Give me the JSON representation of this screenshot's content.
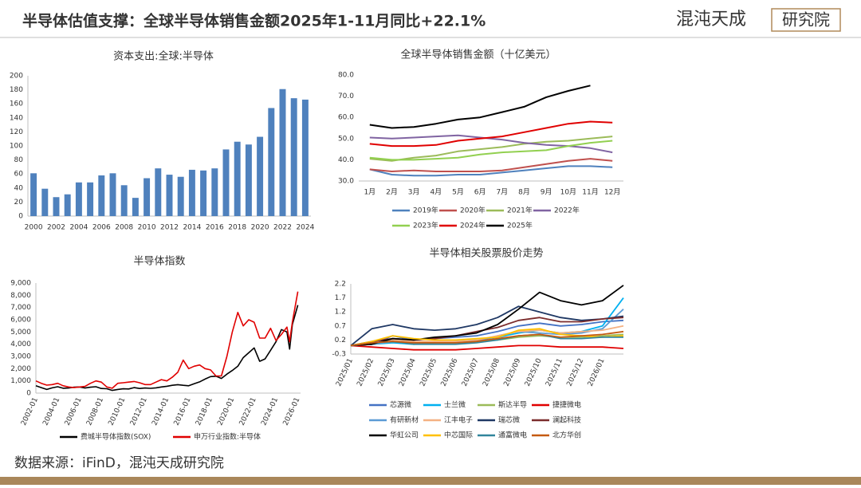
{
  "header": {
    "title": "半导体估值支撑：全球半导体销售金额2025年1-11月同比+22.1%",
    "logo_left": "混沌天成",
    "logo_right": "研究院"
  },
  "footer": {
    "source": "数据来源：iFinD，混沌天成研究院"
  },
  "chart_data": [
    {
      "type": "bar",
      "title": "资本支出:全球:半导体",
      "color": "#4f81bd",
      "categories": [
        "2000",
        null,
        "2002",
        null,
        "2004",
        null,
        "2006",
        null,
        "2008",
        null,
        "2010",
        null,
        "2012",
        null,
        "2014",
        null,
        "2016",
        null,
        "2018",
        null,
        "2020",
        null,
        "2022",
        null,
        "2024"
      ],
      "values": [
        61,
        39,
        27,
        31,
        48,
        48,
        58,
        61,
        44,
        26,
        54,
        68,
        59,
        56,
        66,
        65,
        68,
        95,
        106,
        102,
        113,
        154,
        181,
        168,
        166
      ],
      "ylim": [
        0,
        200
      ],
      "yticks": [
        0,
        20,
        40,
        60,
        80,
        100,
        120,
        140,
        160,
        180,
        200
      ]
    },
    {
      "type": "line",
      "title": "全球半导体销售金额（十亿美元）",
      "categories": [
        "1月",
        "2月",
        "3月",
        "4月",
        "5月",
        "6月",
        "7月",
        "8月",
        "9月",
        "10月",
        "11月",
        "12月"
      ],
      "ylim": [
        30,
        80
      ],
      "yticks": [
        {
          "value": 30,
          "label": "30.0"
        },
        {
          "value": 40,
          "label": "40.0"
        },
        {
          "value": 50,
          "label": "50.0"
        },
        {
          "value": 60,
          "label": "60.0"
        },
        {
          "value": 70,
          "label": "70.0"
        },
        {
          "value": 80,
          "label": "80.0"
        }
      ],
      "legend": "bottom",
      "series": [
        {
          "name": "2019年",
          "color": "#4f81bd",
          "values": [
            35.5,
            33.0,
            32.5,
            32.5,
            33.0,
            33.0,
            34.0,
            35.0,
            36.0,
            37.0,
            37.0,
            36.5
          ]
        },
        {
          "name": "2020年",
          "color": "#c0504d",
          "values": [
            35.5,
            34.5,
            35.0,
            34.5,
            34.5,
            34.5,
            35.0,
            36.5,
            38.0,
            39.5,
            40.5,
            39.5
          ]
        },
        {
          "name": "2021年",
          "color": "#9bbb59",
          "values": [
            40.5,
            39.5,
            41.0,
            42.0,
            44.0,
            45.0,
            46.0,
            47.5,
            48.5,
            49.0,
            50.0,
            51.0
          ]
        },
        {
          "name": "2022年",
          "color": "#8064a2",
          "values": [
            50.5,
            50.0,
            50.5,
            51.0,
            51.5,
            50.5,
            49.5,
            48.0,
            47.0,
            46.5,
            45.5,
            43.5
          ]
        },
        {
          "name": "2023年",
          "color": "#92d050",
          "values": [
            41.0,
            40.0,
            40.0,
            40.5,
            41.0,
            42.5,
            43.5,
            44.0,
            44.5,
            46.5,
            48.0,
            49.0
          ]
        },
        {
          "name": "2024年",
          "color": "#e00000",
          "values": [
            47.5,
            46.5,
            46.5,
            47.0,
            49.0,
            50.0,
            51.0,
            53.0,
            55.0,
            57.0,
            58.0,
            57.5
          ]
        },
        {
          "name": "2025年",
          "color": "#000000",
          "values": [
            56.5,
            55.0,
            55.5,
            57.0,
            59.0,
            60.0,
            62.5,
            65.0,
            69.5,
            72.5,
            75.0,
            null
          ]
        }
      ]
    },
    {
      "type": "line",
      "title": "半导体指数",
      "x": [
        "2002-01",
        "2002-07",
        "2003-01",
        "2003-07",
        "2004-01",
        "2004-07",
        "2005-01",
        "2005-07",
        "2006-01",
        "2006-07",
        "2007-01",
        "2007-07",
        "2008-01",
        "2008-07",
        "2009-01",
        "2009-07",
        "2010-01",
        "2010-07",
        "2011-01",
        "2011-07",
        "2012-01",
        "2012-07",
        "2013-01",
        "2013-07",
        "2014-01",
        "2014-07",
        "2015-01",
        "2015-07",
        "2016-01",
        "2016-07",
        "2017-01",
        "2017-07",
        "2018-01",
        "2018-07",
        "2019-01",
        "2019-07",
        "2020-01",
        "2020-07",
        "2021-01",
        "2021-07",
        "2022-01",
        "2022-07",
        "2023-01",
        "2023-07",
        "2024-01",
        "2024-07",
        "2025-01",
        "2025-04",
        "2025-07",
        "2026-01"
      ],
      "xlim": [
        "2002-01",
        "2026-04"
      ],
      "xticks": [
        "2002-01",
        "2004-01",
        "2006-01",
        "2008-01",
        "2010-01",
        "2012-01",
        "2014-01",
        "2016-01",
        "2018-01",
        "2020-01",
        "2022-01",
        "2024-01",
        "2026-01"
      ],
      "ylim": [
        0,
        9000
      ],
      "yticks": [
        0,
        {
          "value": 1000,
          "label": "1,000"
        },
        {
          "value": 2000,
          "label": "2,000"
        },
        {
          "value": 3000,
          "label": "3,000"
        },
        {
          "value": 4000,
          "label": "4,000"
        },
        {
          "value": 5000,
          "label": "5,000"
        },
        {
          "value": 6000,
          "label": "6,000"
        },
        {
          "value": 7000,
          "label": "7,000"
        },
        {
          "value": 8000,
          "label": "8,000"
        },
        {
          "value": 9000,
          "label": "9,000"
        }
      ],
      "legend": "bottom",
      "series": [
        {
          "name": "费城半导体指数(SOX)",
          "color": "#000000",
          "values": [
            600,
            450,
            300,
            430,
            520,
            400,
            420,
            480,
            500,
            420,
            480,
            520,
            380,
            360,
            220,
            300,
            350,
            340,
            450,
            380,
            420,
            390,
            430,
            500,
            560,
            640,
            690,
            640,
            600,
            760,
            920,
            1150,
            1350,
            1380,
            1200,
            1550,
            1850,
            2200,
            2900,
            3300,
            3700,
            2600,
            2800,
            3500,
            4200,
            5200,
            5000,
            3600,
            5600,
            7200
          ]
        },
        {
          "name": "申万行业指数:半导体",
          "color": "#e00000",
          "values": [
            1000,
            800,
            650,
            700,
            800,
            600,
            500,
            450,
            500,
            550,
            800,
            1000,
            900,
            500,
            400,
            800,
            850,
            900,
            950,
            850,
            700,
            700,
            900,
            1100,
            1000,
            1300,
            1700,
            2700,
            2000,
            2200,
            2300,
            2000,
            1900,
            1400,
            1400,
            3000,
            5000,
            6600,
            5500,
            6000,
            5800,
            4500,
            4500,
            5300,
            4300,
            4800,
            5400,
            4200,
            5800,
            8300
          ]
        }
      ]
    },
    {
      "type": "line",
      "title": "半导体相关股票股价走势",
      "x": [
        "2025/01",
        "2025/02",
        "2025/03",
        "2025/04",
        "2025/05",
        "2025/06",
        "2025/07",
        "2025/08",
        "2025/09",
        "2025/10",
        "2025/11",
        "2025/12",
        "2026/01",
        "2026/02"
      ],
      "xlim": [
        "2025/01",
        "2026/02"
      ],
      "xticks": [
        "2025/01",
        "2025/02",
        "2025/03",
        "2025/04",
        "2025/05",
        "2025/06",
        "2025/07",
        "2025/08",
        "2025/09",
        "2025/10",
        "2025/11",
        "2025/12",
        "2026/01"
      ],
      "ylim": [
        -0.3,
        2.2
      ],
      "yticks": [
        -0.3,
        0.2,
        0.7,
        1.2,
        1.7,
        2.2
      ],
      "legend": "bottom",
      "series": [
        {
          "name": "芯源微",
          "color": "#4472c4",
          "values": [
            0,
            0.05,
            0.35,
            0.2,
            0.25,
            0.3,
            0.35,
            0.5,
            0.7,
            0.8,
            0.7,
            0.75,
            0.85,
            0.9
          ]
        },
        {
          "name": "士兰微",
          "color": "#00b0f0",
          "values": [
            0,
            0.05,
            0.1,
            0.05,
            0.1,
            0.15,
            0.2,
            0.3,
            0.45,
            0.55,
            0.45,
            0.5,
            0.7,
            1.7
          ]
        },
        {
          "name": "斯达半导",
          "color": "#9bbb59",
          "values": [
            0,
            0.05,
            0.15,
            0.1,
            0.1,
            0.1,
            0.15,
            0.2,
            0.3,
            0.35,
            0.3,
            0.3,
            0.35,
            0.4
          ]
        },
        {
          "name": "捷捷微电",
          "color": "#e00000",
          "values": [
            0,
            -0.05,
            -0.1,
            -0.15,
            -0.15,
            -0.15,
            -0.1,
            -0.05,
            0,
            0,
            -0.05,
            -0.05,
            -0.05,
            -0.1
          ]
        },
        {
          "name": "有研新材",
          "color": "#5b9bd5",
          "values": [
            0,
            0.05,
            0.15,
            0.1,
            0.1,
            0.1,
            0.15,
            0.35,
            0.5,
            0.45,
            0.4,
            0.45,
            0.6,
            1.3
          ]
        },
        {
          "name": "江丰电子",
          "color": "#f4b183",
          "values": [
            0,
            0.1,
            0.2,
            0.15,
            0.15,
            0.15,
            0.2,
            0.35,
            0.5,
            0.55,
            0.45,
            0.5,
            0.55,
            0.7
          ]
        },
        {
          "name": "瑞芯微",
          "color": "#1f3864",
          "values": [
            0,
            0.6,
            0.75,
            0.6,
            0.55,
            0.6,
            0.75,
            1.0,
            1.4,
            1.2,
            1.0,
            0.9,
            0.95,
            1.05
          ]
        },
        {
          "name": "澜起科技",
          "color": "#7b2c2c",
          "values": [
            0,
            0.15,
            0.25,
            0.2,
            0.25,
            0.35,
            0.5,
            0.65,
            0.9,
            1.0,
            0.85,
            0.85,
            0.95,
            1.0
          ]
        },
        {
          "name": "华虹公司",
          "color": "#000000",
          "values": [
            0,
            0.05,
            0.25,
            0.2,
            0.3,
            0.35,
            0.45,
            0.75,
            1.3,
            1.9,
            1.6,
            1.45,
            1.6,
            2.15
          ]
        },
        {
          "name": "中芯国际",
          "color": "#ffc000",
          "values": [
            0,
            0.15,
            0.35,
            0.25,
            0.2,
            0.2,
            0.25,
            0.3,
            0.55,
            0.6,
            0.4,
            0.35,
            0.3,
            0.35
          ]
        },
        {
          "name": "通富微电",
          "color": "#31859c",
          "values": [
            0,
            0.1,
            0.15,
            0.05,
            0.05,
            0.05,
            0.1,
            0.2,
            0.35,
            0.4,
            0.25,
            0.25,
            0.3,
            0.3
          ]
        },
        {
          "name": "北方华创",
          "color": "#c55a11",
          "values": [
            0,
            0.1,
            0.15,
            0.1,
            0.1,
            0.1,
            0.15,
            0.25,
            0.35,
            0.4,
            0.3,
            0.35,
            0.4,
            0.5
          ]
        }
      ]
    }
  ]
}
